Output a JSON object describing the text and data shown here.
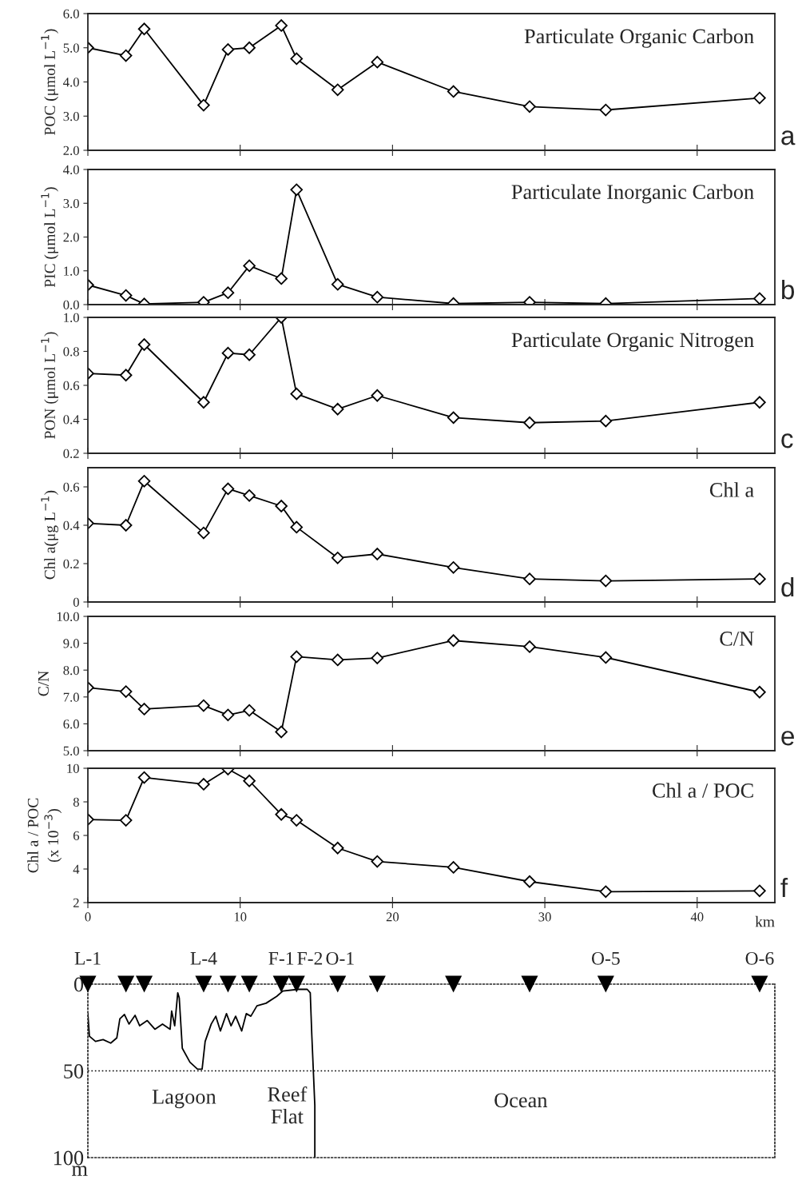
{
  "chart_data": [
    {
      "type": "line",
      "title": "Particulate Organic Carbon",
      "ylabel": "POC (μmol L$^{−1}$)",
      "annotations": [
        "a"
      ],
      "marker": "diamond",
      "tick_labels": "y",
      "x": [
        0,
        2.5,
        3.7,
        7.6,
        9.2,
        10.6,
        12.7,
        13.7,
        16.4,
        19.0,
        24.0,
        29.0,
        34.0,
        44.1
      ],
      "series": [
        {
          "color": "#000000",
          "values": [
            5.0,
            4.77,
            5.55,
            3.32,
            4.95,
            5.0,
            5.65,
            4.68,
            3.77,
            4.58,
            3.72,
            3.28,
            3.18,
            3.53
          ]
        }
      ],
      "xlim": [
        0,
        45.1
      ],
      "xticks": [
        0,
        10,
        20,
        30,
        40
      ],
      "ylim": [
        2,
        6
      ],
      "yticks": [
        {
          "value": 2,
          "label": "2.0"
        },
        {
          "value": 3,
          "label": "3.0"
        },
        {
          "value": 4,
          "label": "4.0"
        },
        {
          "value": 5,
          "label": "5.0"
        },
        {
          "value": 6,
          "label": "6.0"
        }
      ]
    },
    {
      "type": "line",
      "title": "Particulate Inorganic Carbon",
      "ylabel": "PIC (μmol L$^{−1}$)",
      "annotations": [
        "b"
      ],
      "marker": "diamond",
      "tick_labels": "y",
      "x": [
        0,
        2.5,
        3.7,
        7.6,
        9.2,
        10.6,
        12.7,
        13.7,
        16.4,
        19.0,
        24.0,
        29.0,
        34.0,
        44.1
      ],
      "series": [
        {
          "color": "#000000",
          "values": [
            0.58,
            0.27,
            0.02,
            0.07,
            0.35,
            1.15,
            0.77,
            3.4,
            0.6,
            0.22,
            0.03,
            0.07,
            0.03,
            0.18
          ]
        }
      ],
      "xlim": [
        0,
        45.1
      ],
      "xticks": [
        0,
        10,
        20,
        30,
        40
      ],
      "ylim": [
        0,
        4
      ],
      "yticks": [
        {
          "value": 0,
          "label": "0.0"
        },
        {
          "value": 1,
          "label": "1.0"
        },
        {
          "value": 2,
          "label": "2.0"
        },
        {
          "value": 3,
          "label": "3.0"
        },
        {
          "value": 4,
          "label": "4.0"
        }
      ]
    },
    {
      "type": "line",
      "title": "Particulate Organic Nitrogen",
      "ylabel": "PON (μmol L$^{−1}$)",
      "annotations": [
        "c"
      ],
      "marker": "diamond",
      "tick_labels": "y",
      "x": [
        0,
        2.5,
        3.7,
        7.6,
        9.2,
        10.6,
        12.7,
        13.7,
        16.4,
        19.0,
        24.0,
        29.0,
        34.0,
        44.1
      ],
      "series": [
        {
          "color": "#000000",
          "values": [
            0.67,
            0.66,
            0.84,
            0.5,
            0.79,
            0.78,
            1.0,
            0.55,
            0.46,
            0.54,
            0.41,
            0.38,
            0.39,
            0.5
          ]
        }
      ],
      "xlim": [
        0,
        45.1
      ],
      "xticks": [
        0,
        10,
        20,
        30,
        40
      ],
      "ylim": [
        0.2,
        1.0
      ],
      "yticks": [
        0.2,
        0.4,
        0.6,
        0.8,
        {
          "value": 1.0,
          "label": "1.0"
        }
      ]
    },
    {
      "type": "line",
      "title": "Chl a",
      "ylabel": "Chl a(μg L$^{−1}$)",
      "annotations": [
        "d"
      ],
      "marker": "diamond",
      "tick_labels": "y",
      "x": [
        0,
        2.5,
        3.7,
        7.6,
        9.2,
        10.6,
        12.7,
        13.7,
        16.4,
        19.0,
        24.0,
        29.0,
        34.0,
        44.1
      ],
      "series": [
        {
          "color": "#000000",
          "values": [
            0.41,
            0.4,
            0.63,
            0.36,
            0.59,
            0.555,
            0.5,
            0.39,
            0.23,
            0.25,
            0.18,
            0.12,
            0.11,
            0.12
          ]
        }
      ],
      "xlim": [
        0,
        45.1
      ],
      "xticks": [
        0,
        10,
        20,
        30,
        40
      ],
      "ylim": [
        0,
        0.7
      ],
      "yticks": [
        0,
        0.2,
        0.4,
        0.6
      ]
    },
    {
      "type": "line",
      "title": "C/N",
      "ylabel": "C/N",
      "annotations": [
        "e"
      ],
      "marker": "diamond",
      "tick_labels": "y",
      "x": [
        0,
        2.5,
        3.7,
        7.6,
        9.2,
        10.6,
        12.7,
        13.7,
        16.4,
        19.0,
        24.0,
        29.0,
        34.0,
        44.1
      ],
      "series": [
        {
          "color": "#000000",
          "values": [
            7.35,
            7.2,
            6.55,
            6.68,
            6.33,
            6.5,
            5.7,
            8.5,
            8.38,
            8.45,
            9.1,
            8.87,
            8.47,
            7.18
          ]
        }
      ],
      "xlim": [
        0,
        45.1
      ],
      "xticks": [
        0,
        10,
        20,
        30,
        40
      ],
      "ylim": [
        5,
        10
      ],
      "yticks": [
        {
          "value": 5,
          "label": "5.0"
        },
        {
          "value": 6,
          "label": "6.0"
        },
        {
          "value": 7,
          "label": "7.0"
        },
        {
          "value": 8,
          "label": "8.0"
        },
        {
          "value": 9,
          "label": "9.0"
        },
        {
          "value": 10,
          "label": "10.0"
        }
      ]
    },
    {
      "type": "line",
      "title": "Chl a / POC",
      "ylabel": "Chl a / POC\n(x 10$^{−3}$)",
      "xlabel": "km",
      "annotations": [
        "f"
      ],
      "marker": "diamond",
      "x": [
        0,
        2.5,
        3.7,
        7.6,
        9.2,
        10.6,
        12.7,
        13.7,
        16.4,
        19.0,
        24.0,
        29.0,
        34.0,
        44.1
      ],
      "series": [
        {
          "color": "#000000",
          "values": [
            6.95,
            6.9,
            9.45,
            9.05,
            9.95,
            9.25,
            7.25,
            6.9,
            5.25,
            4.45,
            4.1,
            3.25,
            2.65,
            2.7
          ]
        }
      ],
      "xlim": [
        0,
        45.1
      ],
      "xticks": [
        0,
        10,
        20,
        30,
        40
      ],
      "ylim": [
        2,
        10
      ],
      "yticks": [
        2,
        4,
        6,
        8,
        10
      ]
    },
    {
      "type": "line",
      "ylabel": "m",
      "tick_labels": "y",
      "series": [
        {
          "color": "#000000",
          "x": [
            0,
            0.1,
            0.5,
            1.0,
            1.5,
            1.9,
            2.1,
            2.4,
            2.7,
            3.1,
            3.4,
            3.9,
            4.4,
            4.9,
            5.4,
            5.5,
            5.7,
            5.9,
            6.0,
            6.2,
            6.7,
            7.2,
            7.5,
            7.7,
            8.1,
            8.4,
            8.7,
            9.1,
            9.4,
            9.7,
            10.1,
            10.4,
            10.7,
            11.1,
            11.7,
            12.4,
            12.8,
            13.8,
            14.4,
            14.6,
            14.7,
            14.9,
            14.9
          ],
          "values": [
            17,
            30,
            33,
            32,
            34,
            31,
            20,
            17.5,
            23,
            18,
            24,
            21,
            26,
            23,
            26,
            15.5,
            24,
            5,
            8,
            37,
            45,
            49,
            49,
            33,
            23,
            18.5,
            27,
            17,
            24,
            18.5,
            27,
            17,
            18.5,
            12.5,
            11,
            7,
            4,
            3,
            3,
            5,
            29,
            70,
            100
          ]
        },
        {
          "type": "scatter",
          "marker": "triangle",
          "color": "#000000",
          "x": [
            0,
            2.5,
            3.7,
            7.6,
            9.2,
            10.6,
            12.7,
            13.7,
            16.4,
            19.0,
            24.0,
            29.0,
            34.0,
            44.1
          ],
          "values": [
            0,
            0,
            0,
            0,
            0,
            0,
            0,
            0,
            0,
            0,
            0,
            0,
            0,
            0
          ],
          "value_labels": [
            "L-1",
            null,
            null,
            "L-4",
            null,
            null,
            "F-1",
            "F-2",
            "O-1",
            null,
            null,
            null,
            "O-5",
            "O-6"
          ]
        }
      ],
      "xlim": [
        0,
        45.1
      ],
      "ylim": [
        100,
        0
      ],
      "yticks": [
        0,
        50,
        100
      ],
      "line_style": "solid",
      "ref_lines": [
        {
          "axis": "y",
          "value": 50,
          "line_style": "dotted"
        }
      ],
      "annotations": [
        "Lagoon",
        "Reef\nFlat",
        "Ocean"
      ]
    }
  ]
}
